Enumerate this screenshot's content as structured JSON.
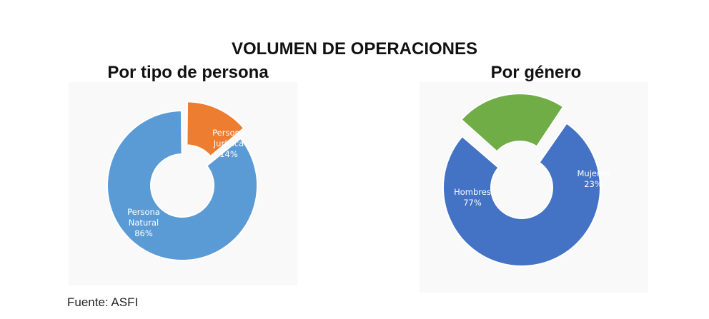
{
  "title": "VOLUMEN DE OPERACIONES",
  "source": "Fuente: ASFI",
  "chart_data": [
    {
      "type": "pie",
      "variant": "donut",
      "title": "Por tipo de persona",
      "slices": [
        {
          "label_lines": [
            "Persona",
            "Natural",
            "86%"
          ],
          "value": 86,
          "color": "#5B9BD5",
          "label_color": "#ffffff"
        },
        {
          "label_lines": [
            "Persona",
            "Jurídica",
            "14%"
          ],
          "value": 14,
          "color": "#ED7D31",
          "label_color": "#ffffff",
          "exploded": true
        }
      ]
    },
    {
      "type": "pie",
      "variant": "donut",
      "title": "Por género",
      "slices": [
        {
          "label_lines": [
            "Hombres",
            "77%"
          ],
          "value": 77,
          "color": "#4472C4",
          "label_color": "#ffffff"
        },
        {
          "label_lines": [
            "Mujeres",
            "23%"
          ],
          "value": 23,
          "color": "#70AD47",
          "label_color": "#ffffff",
          "exploded": true
        }
      ]
    }
  ]
}
